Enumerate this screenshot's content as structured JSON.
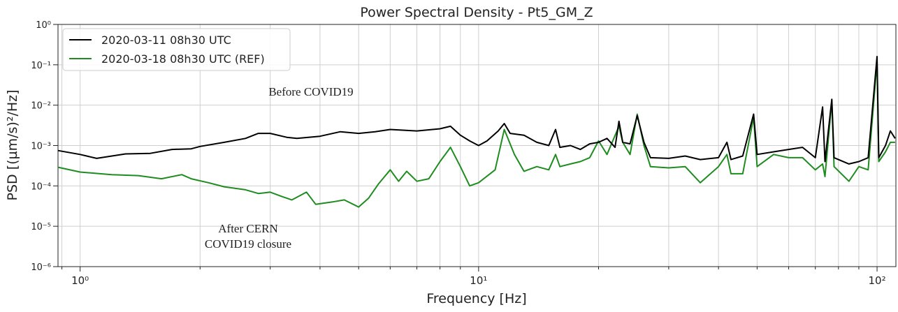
{
  "chart_data": {
    "type": "line",
    "title": "Power Spectral Density - Pt5_GM_Z",
    "x_label": "Frequency [Hz]",
    "y_label": "PSD [(µm/s)²/Hz]",
    "log_x": true,
    "log_y": true,
    "grid": true,
    "legend": "upper left",
    "xlim": [
      0.88,
      111.5
    ],
    "ylim": [
      1e-06,
      1
    ],
    "xticks": [
      {
        "value": 1,
        "label": "10⁰"
      },
      {
        "value": 10,
        "label": "10¹"
      },
      {
        "value": 100,
        "label": "10²"
      }
    ],
    "xminorticks": [
      0.9,
      2,
      3,
      4,
      5,
      6,
      7,
      8,
      9,
      20,
      30,
      40,
      50,
      60,
      70,
      80,
      90
    ],
    "yticks": [
      {
        "value": 1e-06,
        "label": "10⁻⁶"
      },
      {
        "value": 1e-05,
        "label": "10⁻⁵"
      },
      {
        "value": 0.0001,
        "label": "10⁻⁴"
      },
      {
        "value": 0.001,
        "label": "10⁻³"
      },
      {
        "value": 0.01,
        "label": "10⁻²"
      },
      {
        "value": 0.1,
        "label": "10⁻¹"
      },
      {
        "value": 1,
        "label": "10⁰"
      }
    ],
    "annotations": [
      [
        "Before COVID19"
      ],
      [
        "After CERN",
        "COVID19 closure"
      ]
    ],
    "series": [
      {
        "name": "2020-03-11 08h30 UTC",
        "color": "#000000",
        "x": [
          0.88,
          1.0,
          1.1,
          1.3,
          1.5,
          1.7,
          1.9,
          2.0,
          2.3,
          2.6,
          2.8,
          3.0,
          3.3,
          3.5,
          4.0,
          4.5,
          5.0,
          5.5,
          6.0,
          7.0,
          8.0,
          8.5,
          9.0,
          9.5,
          10,
          10.5,
          11.2,
          11.6,
          12,
          13,
          14,
          15,
          15.6,
          16,
          17,
          18,
          19,
          20,
          21,
          22,
          22.5,
          23,
          24,
          25,
          26,
          27,
          30,
          33,
          36,
          40,
          42,
          43,
          46,
          49,
          50,
          55,
          60,
          65,
          70,
          73,
          74,
          77,
          78,
          85,
          90,
          95,
          100,
          101,
          105,
          108,
          111
        ],
        "values": [
          0.00075,
          0.0006,
          0.00048,
          0.00062,
          0.00064,
          0.0008,
          0.00083,
          0.00095,
          0.0012,
          0.0015,
          0.002,
          0.002,
          0.0016,
          0.0015,
          0.0017,
          0.0022,
          0.002,
          0.0022,
          0.0025,
          0.0023,
          0.0026,
          0.003,
          0.0018,
          0.0013,
          0.001,
          0.0013,
          0.0023,
          0.0035,
          0.002,
          0.0018,
          0.0012,
          0.001,
          0.0025,
          0.0009,
          0.001,
          0.0008,
          0.0011,
          0.0012,
          0.0015,
          0.0009,
          0.004,
          0.0012,
          0.0011,
          0.0055,
          0.0012,
          0.0005,
          0.00048,
          0.00055,
          0.00045,
          0.0005,
          0.0012,
          0.00045,
          0.00055,
          0.006,
          0.0006,
          0.0007,
          0.0008,
          0.0009,
          0.0005,
          0.009,
          0.0004,
          0.014,
          0.0005,
          0.00035,
          0.0004,
          0.0005,
          0.16,
          0.0005,
          0.001,
          0.0023,
          0.0015
        ]
      },
      {
        "name": "2020-03-18 08h30 UTC (REF)",
        "color": "#1e8c1e",
        "x": [
          0.88,
          1.0,
          1.2,
          1.4,
          1.6,
          1.8,
          1.9,
          2.1,
          2.3,
          2.6,
          2.8,
          3.0,
          3.2,
          3.4,
          3.7,
          3.9,
          4.3,
          4.6,
          5.0,
          5.3,
          5.6,
          6.0,
          6.3,
          6.6,
          7.0,
          7.5,
          8.0,
          8.5,
          9.0,
          9.5,
          10,
          11,
          11.6,
          12.3,
          13,
          14,
          15,
          15.6,
          16,
          17,
          18,
          19,
          20,
          21,
          22.5,
          23,
          24,
          25,
          26,
          27,
          30,
          33,
          36,
          40,
          42,
          43,
          46,
          49,
          50,
          55,
          60,
          65,
          70,
          73,
          74,
          77,
          78,
          85,
          90,
          95,
          100,
          101,
          105,
          108,
          111
        ],
        "values": [
          0.00029,
          0.00022,
          0.00019,
          0.00018,
          0.00015,
          0.00019,
          0.00015,
          0.00012,
          9.5e-05,
          8e-05,
          6.5e-05,
          7e-05,
          5.5e-05,
          4.5e-05,
          7e-05,
          3.5e-05,
          4e-05,
          4.5e-05,
          3e-05,
          5e-05,
          0.00011,
          0.00025,
          0.00013,
          0.00023,
          0.00013,
          0.00015,
          0.0004,
          0.0009,
          0.0003,
          0.0001,
          0.00012,
          0.00025,
          0.0025,
          0.0006,
          0.00023,
          0.0003,
          0.00025,
          0.0006,
          0.0003,
          0.00035,
          0.0004,
          0.0005,
          0.0013,
          0.0006,
          0.003,
          0.0012,
          0.0006,
          0.006,
          0.001,
          0.0003,
          0.00028,
          0.0003,
          0.00012,
          0.0003,
          0.0006,
          0.0002,
          0.0002,
          0.005,
          0.0003,
          0.0006,
          0.0005,
          0.0005,
          0.00025,
          0.00035,
          0.00017,
          0.013,
          0.0003,
          0.00013,
          0.0003,
          0.00025,
          0.12,
          0.0004,
          0.0007,
          0.0012,
          0.0012
        ]
      }
    ]
  }
}
